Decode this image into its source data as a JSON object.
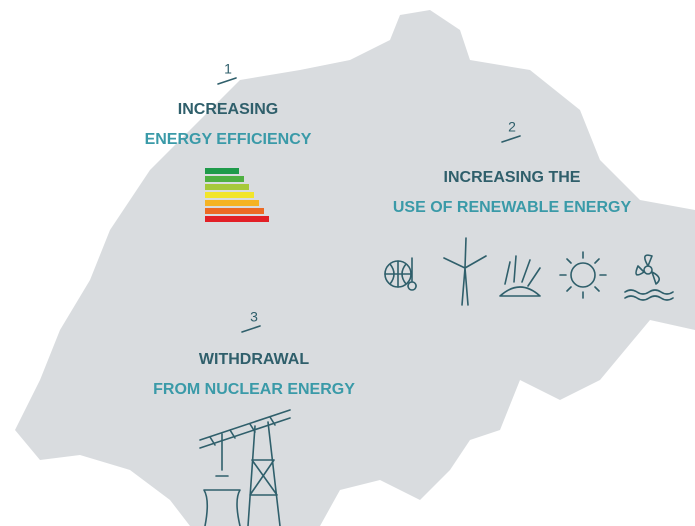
{
  "items": [
    {
      "number": "1",
      "lines": [
        "INCREASING",
        "ENERGY EFFICIENCY"
      ]
    },
    {
      "number": "2",
      "lines": [
        "INCREASING THE",
        "USE OF RENEWABLE ENERGY"
      ]
    },
    {
      "number": "3",
      "lines": [
        "WITHDRAWAL",
        "FROM NUCLEAR ENERGY"
      ]
    }
  ]
}
